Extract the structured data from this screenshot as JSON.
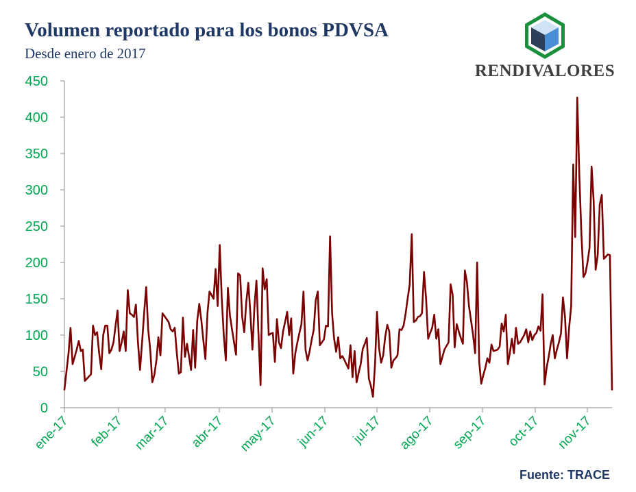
{
  "header": {
    "title": "Volumen reportado para los bonos PDVSA",
    "subtitle": "Desde enero de 2017"
  },
  "logo": {
    "text": "RENDIVALORES",
    "icon": "cube-hexagon-icon",
    "colors": {
      "hex": "#1a8f3c",
      "top": "#cfe3f5",
      "left": "#2e3f5c",
      "right": "#4a8fd6"
    }
  },
  "footer": {
    "source": "Fuente: TRACE"
  },
  "colors": {
    "line": "#7b0000",
    "axis_labels": "#00a651",
    "title": "#1f3864"
  },
  "chart_data": {
    "type": "line",
    "title": "Volumen reportado para los bonos PDVSA",
    "subtitle": "Desde enero de 2017",
    "xlabel": "",
    "ylabel": "",
    "ylim": [
      0,
      450
    ],
    "y_ticks": [
      0,
      50,
      100,
      150,
      200,
      250,
      300,
      350,
      400,
      450
    ],
    "x_ticks": [
      "ene-17",
      "feb-17",
      "mar-17",
      "abr-17",
      "may-17",
      "jun-17",
      "jul-17",
      "ago-17",
      "sep-17",
      "oct-17",
      "nov-17"
    ],
    "grid": false,
    "legend": "none",
    "series": [
      {
        "values": [
          25,
          50,
          75,
          110,
          60,
          70,
          80,
          92,
          78,
          80,
          37,
          40,
          43,
          46,
          113,
          100,
          104,
          75,
          53,
          100,
          113,
          113,
          75,
          80,
          90,
          112,
          134,
          78,
          90,
          105,
          78,
          162,
          130,
          128,
          125,
          142,
          90,
          52,
          90,
          130,
          166,
          108,
          80,
          35,
          45,
          65,
          97,
          72,
          130,
          126,
          122,
          118,
          108,
          105,
          110,
          75,
          47,
          49,
          124,
          70,
          88,
          70,
          52,
          107,
          55,
          120,
          143,
          120,
          93,
          67,
          130,
          160,
          155,
          150,
          191,
          140,
          224,
          150,
          100,
          65,
          165,
          127,
          108,
          90,
          73,
          185,
          182,
          125,
          104,
          145,
          172,
          130,
          80,
          140,
          175,
          100,
          31,
          192,
          163,
          177,
          100,
          102,
          103,
          63,
          122,
          90,
          82,
          105,
          118,
          132,
          100,
          123,
          47,
          75,
          90,
          103,
          115,
          160,
          80,
          65,
          78,
          93,
          107,
          148,
          160,
          86,
          90,
          94,
          113,
          112,
          236,
          130,
          95,
          77,
          97,
          68,
          71,
          66,
          60,
          54,
          86,
          42,
          78,
          35,
          48,
          60,
          81,
          88,
          96,
          40,
          30,
          15,
          60,
          132,
          82,
          62,
          72,
          98,
          114,
          105,
          55,
          65,
          68,
          72,
          108,
          107,
          113,
          130,
          151,
          170,
          239,
          118,
          120,
          125,
          126,
          130,
          187,
          150,
          95,
          103,
          110,
          128,
          95,
          108,
          60,
          70,
          80,
          85,
          90,
          170,
          155,
          83,
          115,
          105,
          96,
          88,
          189,
          173,
          140,
          120,
          100,
          75,
          200,
          63,
          33,
          45,
          55,
          68,
          62,
          87,
          78,
          79,
          80,
          84,
          116,
          105,
          128,
          60,
          75,
          95,
          75,
          110,
          88,
          90,
          95,
          100,
          108,
          90,
          105,
          93,
          100,
          103,
          112,
          106,
          156,
          32,
          55,
          70,
          88,
          100,
          68,
          80,
          90,
          102,
          152,
          125,
          68,
          110,
          140,
          335,
          235,
          427,
          320,
          240,
          180,
          185,
          200,
          220,
          332,
          285,
          190,
          210,
          280,
          293,
          205,
          208,
          211,
          210,
          25
        ]
      }
    ]
  }
}
